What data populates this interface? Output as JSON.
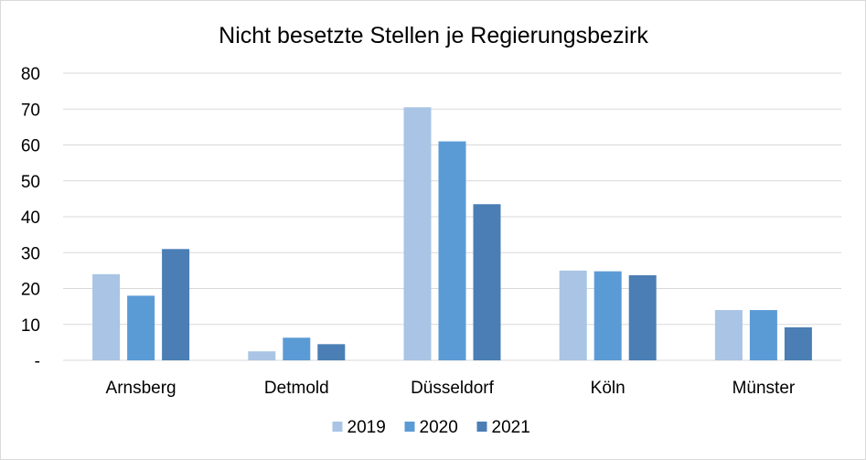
{
  "chart_data": {
    "type": "bar",
    "title": "Nicht besetzte Stellen je Regierungsbezirk",
    "xlabel": "",
    "ylabel": "",
    "categories": [
      "Arnsberg",
      "Detmold",
      "Düsseldorf",
      "Köln",
      "Münster"
    ],
    "series": [
      {
        "name": "2019",
        "color": "#a9c4e4",
        "values": [
          24,
          2.5,
          70.5,
          25,
          14
        ]
      },
      {
        "name": "2020",
        "color": "#5b9bd5",
        "values": [
          18,
          6.3,
          61,
          24.8,
          14
        ]
      },
      {
        "name": "2021",
        "color": "#4a7eb5",
        "values": [
          31,
          4.5,
          43.5,
          23.7,
          9.2
        ]
      }
    ],
    "ylim": [
      0,
      80
    ],
    "yticks": [
      {
        "value": 0,
        "label": "-"
      },
      {
        "value": 10,
        "label": "10"
      },
      {
        "value": 20,
        "label": "20"
      },
      {
        "value": 30,
        "label": "30"
      },
      {
        "value": 40,
        "label": "40"
      },
      {
        "value": 50,
        "label": "50"
      },
      {
        "value": 60,
        "label": "60"
      },
      {
        "value": 70,
        "label": "70"
      },
      {
        "value": 80,
        "label": "80"
      }
    ],
    "grid": true,
    "gridColor": "#d9d9d9",
    "legend_position": "bottom"
  }
}
